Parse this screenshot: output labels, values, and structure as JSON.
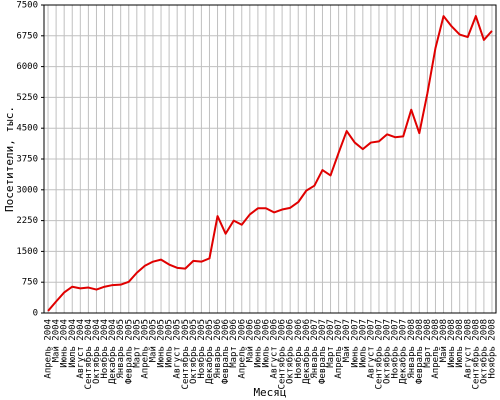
{
  "chart_data": {
    "type": "line",
    "y_label": "Посетители, тыс.",
    "x_label": "Месяц",
    "categories": [
      "Апрель 2004",
      "Май 2004",
      "Июнь 2004",
      "Июль 2004",
      "Август 2004",
      "Сентябрь 2004",
      "Октябрь 2004",
      "Ноябрь 2004",
      "Декабрь 2004",
      "Январь 2005",
      "Февраль 2005",
      "Март 2005",
      "Апрель 2005",
      "Май 2005",
      "Июнь 2005",
      "Июль 2005",
      "Август 2005",
      "Сентябрь 2005",
      "Октябрь 2005",
      "Ноябрь 2005",
      "Декабрь 2005",
      "Январь 2006",
      "Февраль 2006",
      "Март 2006",
      "Апрель 2006",
      "Май 2006",
      "Июнь 2006",
      "Июль 2006",
      "Август 2006",
      "Сентябрь 2006",
      "Октябрь 2006",
      "Ноябрь 2006",
      "Декабрь 2006",
      "Январь 2007",
      "Февраль 2007",
      "Март 2007",
      "Апрель 2007",
      "Май 2007",
      "Июнь 2007",
      "Июль 2007",
      "Август 2007",
      "Сентябрь 2007",
      "Октябрь 2007",
      "Ноябрь 2007",
      "Декабрь 2007",
      "Январь 2008",
      "Февраль 2008",
      "Март 2008",
      "Апрель 2008",
      "Май 2008",
      "Июнь 2008",
      "Июль 2008",
      "Август 2008",
      "Сентябрь 2008",
      "Октябрь 2008",
      "Ноябрь 2008"
    ],
    "values": [
      50,
      280,
      500,
      640,
      600,
      620,
      570,
      640,
      680,
      690,
      760,
      980,
      1150,
      1250,
      1300,
      1180,
      1100,
      1080,
      1270,
      1250,
      1330,
      2360,
      1930,
      2250,
      2150,
      2400,
      2550,
      2550,
      2450,
      2520,
      2560,
      2700,
      2980,
      3100,
      3480,
      3350,
      3900,
      4430,
      4150,
      3990,
      4150,
      4180,
      4350,
      4280,
      4300,
      4950,
      4380,
      5350,
      6450,
      7230,
      6980,
      6780,
      6720,
      7230,
      6650,
      6870
    ],
    "color": "#e00000",
    "ylim": [
      0,
      7500
    ],
    "yticks": [
      0,
      750,
      1500,
      2250,
      3000,
      3750,
      4500,
      5250,
      6000,
      6750,
      7500
    ],
    "grid": true
  }
}
